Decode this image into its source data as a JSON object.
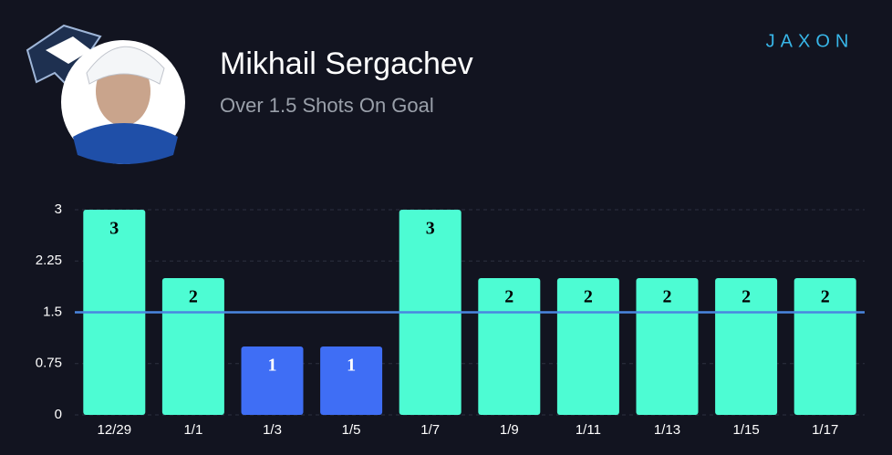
{
  "brand": "JAXON",
  "chart_data": {
    "type": "bar",
    "title": "Mikhail Sergachev",
    "subtitle": "Over 1.5 Shots On Goal",
    "categories": [
      "12/29",
      "1/1",
      "1/3",
      "1/5",
      "1/7",
      "1/9",
      "1/11",
      "1/13",
      "1/15",
      "1/17"
    ],
    "values": [
      3,
      2,
      1,
      1,
      3,
      2,
      2,
      2,
      2,
      2
    ],
    "threshold": 1.5,
    "color_over": "#4dfcd3",
    "color_under": "#3f6ef5",
    "threshold_color": "#4a86e0",
    "ylim": [
      0,
      3
    ],
    "yticks": [
      0,
      0.75,
      1.5,
      2.25,
      3
    ],
    "grid": true
  }
}
